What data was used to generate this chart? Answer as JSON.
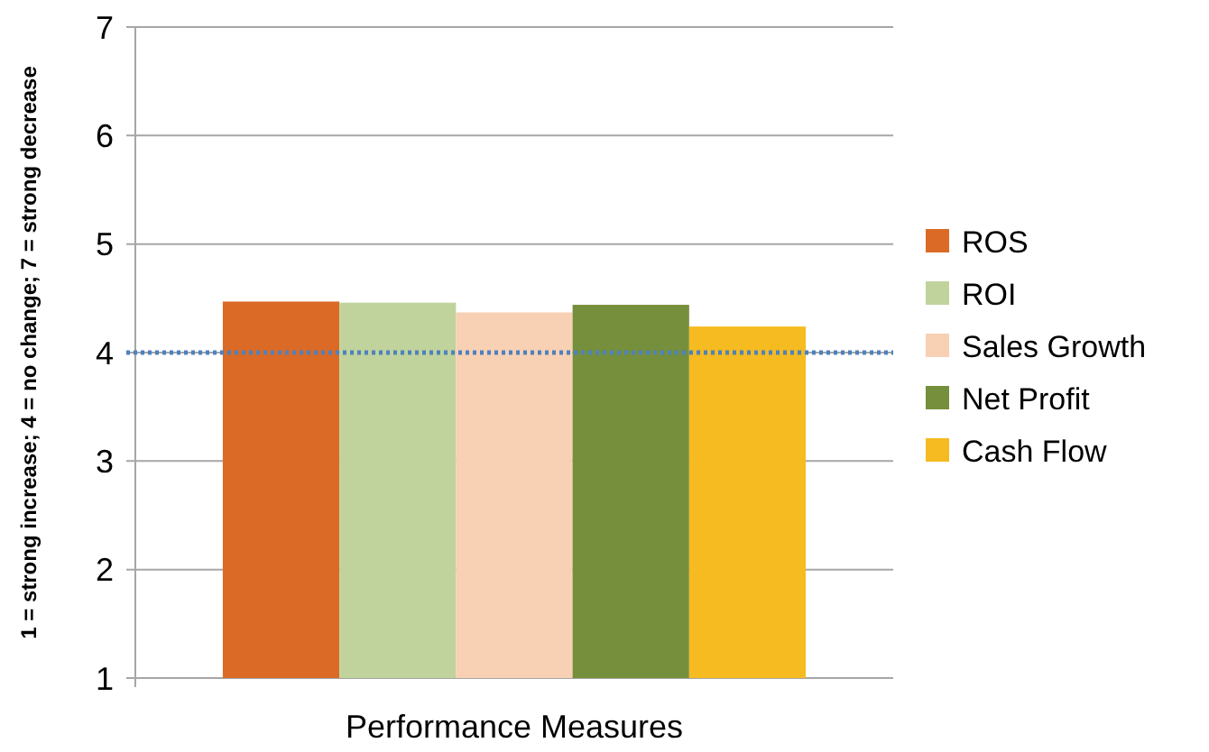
{
  "chart_data": {
    "type": "bar",
    "xlabel": "Performance Measures",
    "ylabel": "1 = strong increase; 4 = no change; 7 = strong decrease",
    "categories": [
      null
    ],
    "series": [
      {
        "name": "ROS",
        "color": "#da6a26",
        "values": [
          4.47
        ]
      },
      {
        "name": "ROI",
        "color": "#c0d39c",
        "values": [
          4.46
        ]
      },
      {
        "name": "Sales Growth",
        "color": "#f8d0b4",
        "values": [
          4.37
        ]
      },
      {
        "name": "Net Profit",
        "color": "#768f3c",
        "values": [
          4.44
        ]
      },
      {
        "name": "Cash Flow",
        "color": "#f5bb20",
        "values": [
          4.24
        ]
      }
    ],
    "ylim": [
      1,
      7
    ],
    "yticks": [
      1,
      2,
      3,
      4,
      5,
      6,
      7
    ],
    "grid": "y",
    "legend": "right",
    "ref_lines": [
      {
        "axis": "y",
        "value": 4,
        "color": "#4f81bd",
        "line_style": "dotted"
      }
    ]
  }
}
